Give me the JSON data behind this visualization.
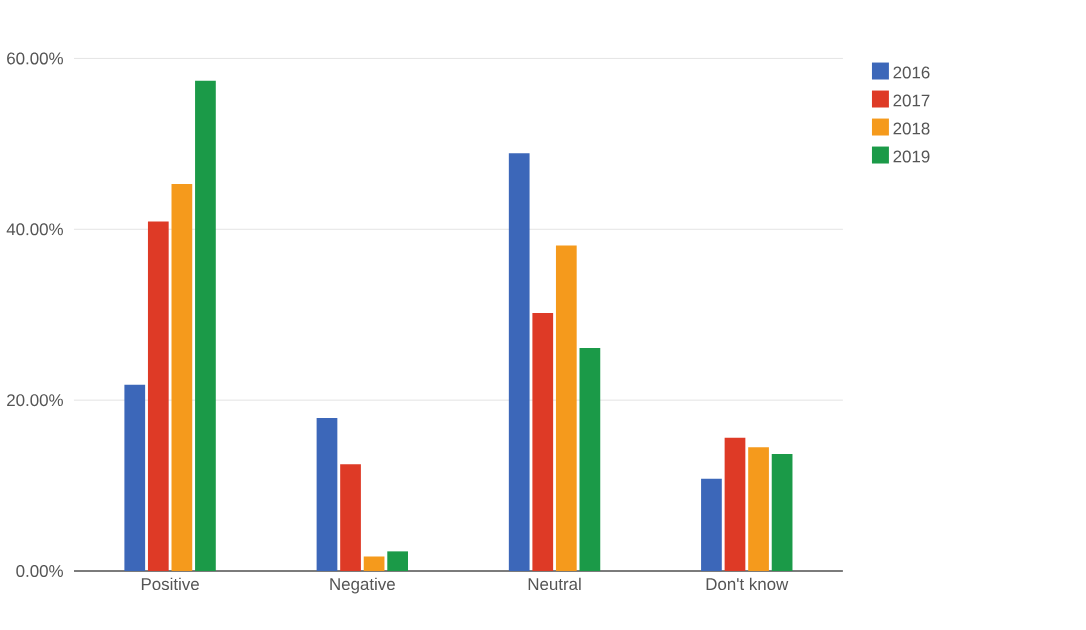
{
  "chart_data": {
    "type": "bar",
    "categories": [
      "Positive",
      "Negative",
      "Neutral",
      "Don't know"
    ],
    "series": [
      {
        "name": "2016",
        "color": "#3c67b9",
        "values": [
          21.8,
          17.9,
          48.9,
          10.8
        ]
      },
      {
        "name": "2017",
        "color": "#de3a26",
        "values": [
          40.9,
          12.5,
          30.2,
          15.6
        ]
      },
      {
        "name": "2018",
        "color": "#f59a1c",
        "values": [
          45.3,
          1.7,
          38.1,
          14.5
        ]
      },
      {
        "name": "2019",
        "color": "#1b9a48",
        "values": [
          57.4,
          2.3,
          26.1,
          13.7
        ]
      }
    ],
    "ylim": [
      0,
      60
    ],
    "yticks": [
      {
        "value": 0,
        "label": "0.00%"
      },
      {
        "value": 20,
        "label": "20.00%"
      },
      {
        "value": 40,
        "label": "40.00%"
      },
      {
        "value": 60,
        "label": "60.00%"
      }
    ],
    "grid": "y",
    "legend": "top right"
  }
}
